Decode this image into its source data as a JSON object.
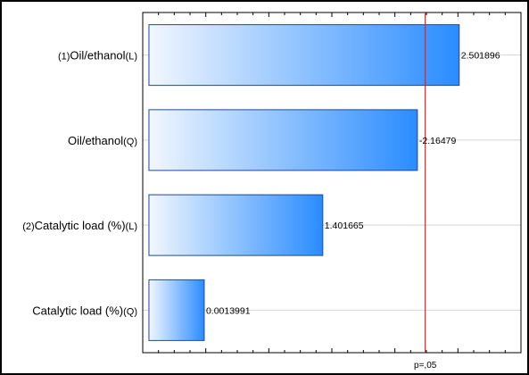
{
  "chart_data": {
    "type": "bar",
    "orientation": "horizontal",
    "title": "",
    "xlabel": "",
    "ylabel": "",
    "categories": [
      {
        "prefix": "(1)",
        "name": "Oil/ethanol",
        "suffix": "(L)"
      },
      {
        "prefix": "",
        "name": "Oil/ethanol",
        "suffix": "(Q)"
      },
      {
        "prefix": "(2)",
        "name": "Catalytic load (%)",
        "suffix": "(L)"
      },
      {
        "prefix": "",
        "name": "Catalytic load (%)",
        "suffix": "(Q)"
      }
    ],
    "values": [
      2.501896,
      2.16479,
      1.401665,
      0.0013991
    ],
    "value_labels": [
      "2.501896",
      "-2.16479",
      "1.401665",
      "0.0013991"
    ],
    "xlim": [
      -0.05,
      3.0
    ],
    "grid": true,
    "reference_line": {
      "value": 2.228,
      "label": "p=,05",
      "color": "#e02020"
    },
    "bar_gradient": [
      "#f2f7fe",
      "#2a8cff"
    ],
    "bar_border": "#1a4a9c"
  }
}
